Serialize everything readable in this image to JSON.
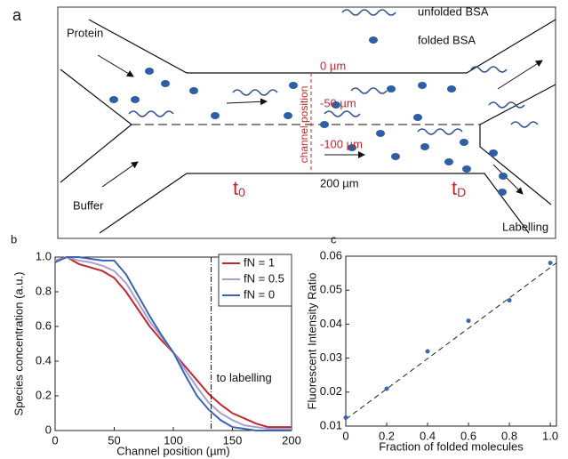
{
  "diagram": {
    "panel_label": "a",
    "legend": {
      "unfolded": "unfolded BSA",
      "folded": "folded BSA"
    },
    "inlets": {
      "protein": "Protein",
      "buffer": "Buffer"
    },
    "outlet": "Labelling",
    "positions": [
      "0 µm",
      "-50 µm",
      "-100 µm",
      "200 µm"
    ],
    "position_axis": "channel position",
    "time_labels": [
      {
        "main": "t",
        "sub": "0"
      },
      {
        "main": "t",
        "sub": "D"
      }
    ]
  },
  "chart_data": [
    {
      "type": "line",
      "panel_label": "b",
      "x": [
        0,
        10,
        20,
        30,
        40,
        50,
        60,
        70,
        80,
        90,
        100,
        110,
        120,
        130,
        140,
        150,
        160,
        170,
        180,
        190,
        200
      ],
      "series": [
        {
          "name": "fN = 1",
          "color": "#c0282d",
          "values": [
            0.98,
            1.0,
            0.96,
            0.94,
            0.92,
            0.88,
            0.8,
            0.7,
            0.6,
            0.52,
            0.45,
            0.37,
            0.29,
            0.21,
            0.15,
            0.1,
            0.07,
            0.04,
            0.02,
            0.02,
            0.02
          ]
        },
        {
          "name": "fN = 0.5",
          "color": "#a9a0d0",
          "values": [
            0.98,
            1.0,
            0.98,
            0.97,
            0.95,
            0.92,
            0.85,
            0.74,
            0.63,
            0.54,
            0.45,
            0.35,
            0.25,
            0.16,
            0.1,
            0.06,
            0.03,
            0.02,
            0.01,
            0.01,
            0.01
          ]
        },
        {
          "name": "fN = 0",
          "color": "#3a64b4",
          "values": [
            0.97,
            1.0,
            1.0,
            0.99,
            0.98,
            0.98,
            0.9,
            0.78,
            0.66,
            0.55,
            0.45,
            0.32,
            0.2,
            0.12,
            0.06,
            0.02,
            0.01,
            0,
            0,
            0,
            0
          ]
        }
      ],
      "xlim": [
        0,
        200
      ],
      "xticks": [
        0,
        50,
        100,
        150,
        200
      ],
      "ylim": [
        0,
        1
      ],
      "yticks": [
        0,
        0.2,
        0.4,
        0.6,
        0.8,
        {
          "value": 1,
          "label": "1.0"
        }
      ],
      "x_label": "Channel position (µm)",
      "y_label": "Species concentration (a.u.)",
      "vline_x": 132,
      "annotation": "to labelling",
      "legend": "upper right"
    },
    {
      "type": "scatter",
      "panel_label": "c",
      "x": [
        0,
        0.2,
        0.4,
        0.6,
        0.8,
        1.0
      ],
      "values": [
        0.0125,
        0.021,
        0.032,
        0.041,
        0.047,
        0.058
      ],
      "color": "#3a64b4",
      "fit_line": {
        "x": [
          0,
          1.03
        ],
        "y": [
          0.012,
          0.058
        ]
      },
      "xlim": [
        0,
        1.03
      ],
      "xticks": [
        0,
        0.2,
        0.4,
        0.6,
        0.8,
        {
          "value": 1,
          "label": "1.0"
        }
      ],
      "ylim": [
        0.01,
        0.06
      ],
      "yticks": [
        0.01,
        0.02,
        0.03,
        0.04,
        0.05,
        0.06
      ],
      "x_label": "Fraction of folded molecules",
      "y_label": "Fluorescent Intensity Ratio"
    }
  ]
}
